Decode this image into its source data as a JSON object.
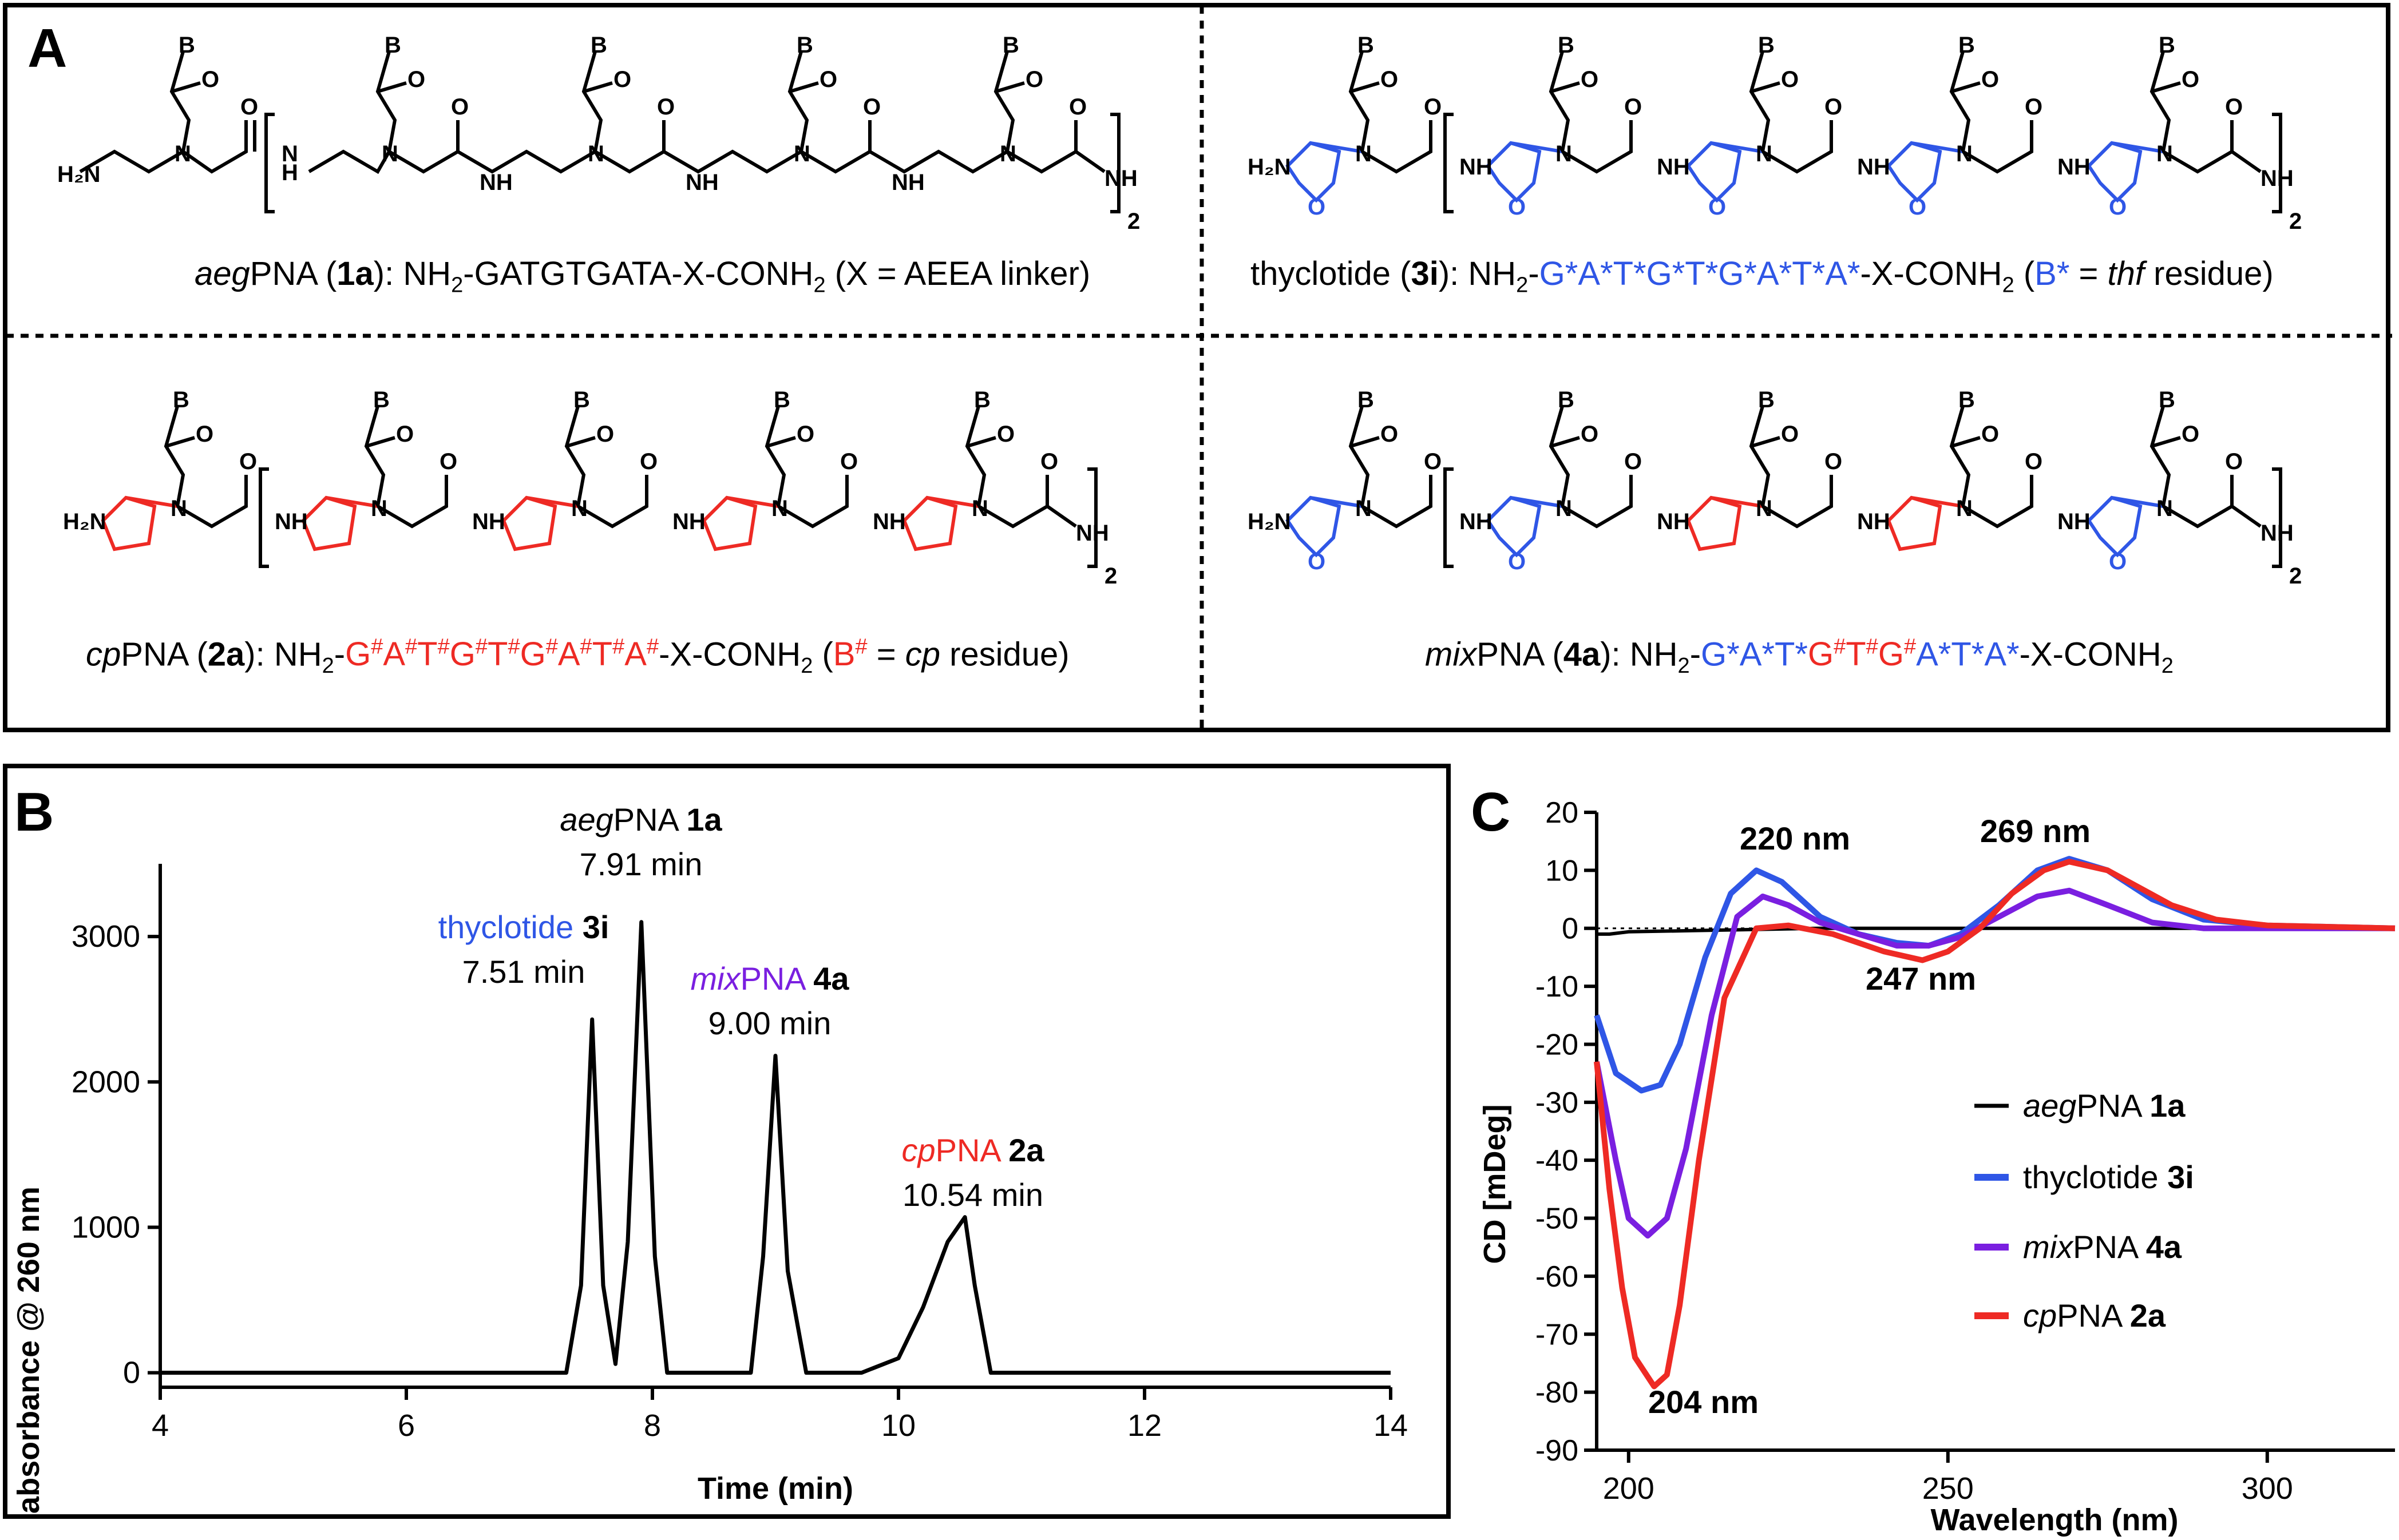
{
  "panel_letters": {
    "a": "A",
    "b": "B",
    "c": "C"
  },
  "structure_labels": {
    "b": "B",
    "n": "N",
    "o": "O",
    "h": "H",
    "nh": "NH",
    "nh2": "NH",
    "h2n": "H₂N",
    "sub2": "2",
    "two": "2"
  },
  "compounds": {
    "aeg": {
      "italic": "aeg",
      "name": "PNA",
      "id": "1a",
      "seq_prefix": "NH",
      "seq_sub": "2",
      "seq_main": "-GATGTGATA-X-CONH",
      "seq_sub2": "2",
      "suffix": " (X = AEEA linker)"
    },
    "thy": {
      "name": "thyclotide",
      "id": "3i",
      "seq_prefix": "NH",
      "seq_sub": "2",
      "seq_colored": "G*A*T*G*T*G*A*T*A*",
      "seq_tail": "-X-CONH",
      "seq_sub2": "2",
      "note_open": " (",
      "note_sym": "B*",
      "note_eq": " = ",
      "note_italic": "thf",
      "note_end": " residue)"
    },
    "cp": {
      "italic": "cp",
      "name": "PNA",
      "id": "2a",
      "seq_prefix": "NH",
      "seq_sub": "2",
      "seq_tail": "-X-CONH",
      "seq_sub2": "2",
      "residues": [
        "G",
        "A",
        "T",
        "G",
        "T",
        "G",
        "A",
        "T",
        "A"
      ],
      "hash": "#",
      "note_open": " (",
      "note_sym": "B",
      "note_eq": " = ",
      "note_italic": "cp",
      "note_end": " residue)"
    },
    "mix": {
      "italic": "mix",
      "name": "PNA",
      "id": "4a",
      "seq_prefix": "NH",
      "seq_sub": "2",
      "seq_blue1": "G*A*T*",
      "seq_red": [
        "G",
        "T",
        "G"
      ],
      "hash": "#",
      "seq_blue2": "A*T*A*",
      "seq_tail": "-X-CONH",
      "seq_sub2": "2"
    }
  },
  "colors": {
    "aeg": "#000000",
    "thy": "#2f56e6",
    "mix": "#7a1fe0",
    "cp": "#ee2a24"
  },
  "chart_data": [
    {
      "type": "line",
      "panel": "B",
      "xlabel": "Time (min)",
      "ylabel": "absorbance @ 260 nm",
      "xlim": [
        4,
        14
      ],
      "ylim": [
        -100,
        3500
      ],
      "xticks": [
        4,
        6,
        8,
        10,
        12,
        14
      ],
      "yticks": [
        0,
        1000,
        2000,
        3000
      ],
      "series": [
        {
          "values_x": [
            4.0,
            7.3,
            7.42,
            7.51,
            7.6,
            7.7,
            7.8,
            7.91,
            8.02,
            8.12,
            8.8,
            8.9,
            9.0,
            9.1,
            9.25,
            9.7,
            10.0,
            10.2,
            10.4,
            10.54,
            10.62,
            10.75,
            11.0,
            14.0
          ],
          "values_y": [
            0,
            0,
            600,
            2430,
            600,
            60,
            900,
            3100,
            800,
            0,
            0,
            800,
            2180,
            700,
            0,
            0,
            100,
            450,
            900,
            1070,
            600,
            0,
            0,
            0
          ]
        }
      ],
      "annotations": [
        {
          "italic": "aeg",
          "text": "PNA ",
          "bold": "1a",
          "time": "7.91 min",
          "color": "aeg"
        },
        {
          "text": "thyclotide ",
          "bold": "3i",
          "time": "7.51 min",
          "color": "thy"
        },
        {
          "italic": "mix",
          "text": "PNA ",
          "bold": "4a",
          "time": "9.00 min",
          "color": "mix"
        },
        {
          "italic": "cp",
          "text": "PNA ",
          "bold": "2a",
          "time": "10.54 min",
          "color": "cp"
        }
      ]
    },
    {
      "type": "line",
      "panel": "C",
      "xlabel": "Wavelength (nm)",
      "ylabel": "CD [mDeg]",
      "xlim": [
        195,
        320
      ],
      "ylim": [
        -90,
        20
      ],
      "xticks": [
        200,
        250,
        300
      ],
      "yticks": [
        20,
        10,
        0,
        -10,
        -20,
        -30,
        -40,
        -50,
        -60,
        -70,
        -80,
        -90
      ],
      "annotations": [
        "220 nm",
        "269 nm",
        "247 nm",
        "204 nm"
      ],
      "legend": [
        {
          "italic": "aeg",
          "text": "PNA ",
          "bold": "1a",
          "color": "aeg"
        },
        {
          "text": "thyclotide ",
          "bold": "3i",
          "color": "thy"
        },
        {
          "italic": "mix",
          "text": "PNA ",
          "bold": "4a",
          "color": "mix"
        },
        {
          "italic": "cp",
          "text": "PNA ",
          "bold": "2a",
          "color": "cp"
        }
      ],
      "series": [
        {
          "key": "aeg",
          "x": [
            195,
            197,
            200,
            210,
            230,
            250,
            280,
            320
          ],
          "y": [
            -1,
            -1,
            -0.6,
            -0.4,
            0,
            0,
            0,
            0
          ]
        },
        {
          "key": "thy",
          "x": [
            195,
            198,
            202,
            205,
            208,
            212,
            216,
            220,
            224,
            230,
            236,
            242,
            247,
            252,
            258,
            264,
            269,
            275,
            282,
            290,
            300,
            320
          ],
          "y": [
            -15,
            -25,
            -28,
            -27,
            -20,
            -5,
            6,
            10,
            8,
            2,
            -1,
            -2.5,
            -3,
            -1,
            4,
            10,
            12,
            10,
            5,
            1.5,
            0.5,
            0
          ]
        },
        {
          "key": "mix",
          "x": [
            195,
            198,
            200,
            203,
            206,
            209,
            213,
            217,
            221,
            225,
            230,
            236,
            242,
            247,
            252,
            258,
            264,
            269,
            275,
            282,
            290,
            300,
            320
          ],
          "y": [
            -23,
            -40,
            -50,
            -53,
            -50,
            -38,
            -15,
            2,
            5.5,
            4,
            1,
            -1,
            -3,
            -3,
            -1.5,
            2,
            5.5,
            6.5,
            4,
            1,
            0,
            0,
            0
          ]
        },
        {
          "key": "cp",
          "x": [
            195,
            197,
            199,
            201,
            204,
            206,
            208,
            211,
            215,
            220,
            225,
            232,
            240,
            246,
            250,
            255,
            260,
            265,
            269,
            275,
            280,
            285,
            292,
            300,
            320
          ],
          "y": [
            -23,
            -45,
            -62,
            -74,
            -79,
            -77,
            -65,
            -40,
            -12,
            0,
            0.5,
            -1,
            -4,
            -5.5,
            -4,
            0,
            6,
            10,
            11.5,
            10,
            7,
            4,
            1.5,
            0.5,
            0
          ]
        }
      ]
    }
  ]
}
